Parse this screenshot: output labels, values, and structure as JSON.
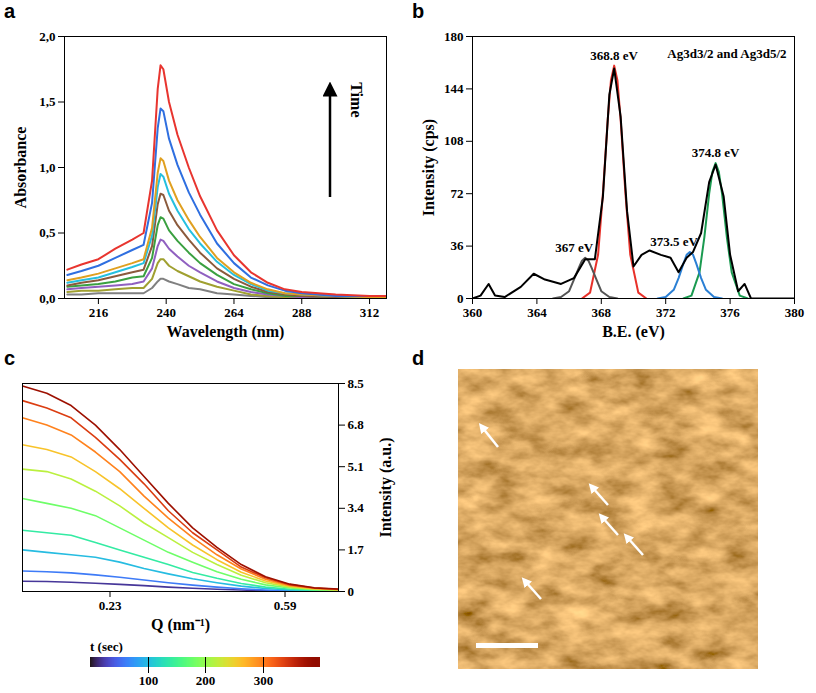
{
  "chart_data": [
    {
      "panel": "a",
      "type": "line",
      "xlabel": "Wavelength (nm)",
      "ylabel": "Absorbance",
      "annotation": "Time",
      "xlim": [
        204,
        318
      ],
      "xticks": [
        216,
        240,
        264,
        288,
        312
      ],
      "ylim": [
        0,
        2
      ],
      "yticks": [
        {
          "value": 0,
          "label": "0,0"
        },
        {
          "value": 0.5,
          "label": "0,5"
        },
        {
          "value": 1,
          "label": "1,0"
        },
        {
          "value": 1.5,
          "label": "1,5"
        },
        {
          "value": 2,
          "label": "2,0"
        }
      ],
      "x": [
        205,
        210,
        216,
        222,
        228,
        232,
        235,
        237,
        238,
        239,
        241,
        244,
        248,
        252,
        258,
        264,
        270,
        276,
        282,
        288,
        300,
        312,
        318
      ],
      "series": [
        {
          "color": "#e8352f",
          "values": [
            0.22,
            0.26,
            0.3,
            0.38,
            0.45,
            0.5,
            0.9,
            1.6,
            1.78,
            1.75,
            1.5,
            1.25,
            1.0,
            0.78,
            0.52,
            0.33,
            0.2,
            0.12,
            0.07,
            0.05,
            0.03,
            0.02,
            0.02
          ]
        },
        {
          "color": "#2f6fe0",
          "values": [
            0.18,
            0.21,
            0.25,
            0.31,
            0.37,
            0.41,
            0.73,
            1.3,
            1.45,
            1.43,
            1.22,
            1.02,
            0.81,
            0.64,
            0.42,
            0.27,
            0.16,
            0.1,
            0.06,
            0.04,
            0.02,
            0.02,
            0.02
          ]
        },
        {
          "color": "#e0a020",
          "values": [
            0.14,
            0.16,
            0.19,
            0.23,
            0.27,
            0.3,
            0.54,
            0.96,
            1.07,
            1.05,
            0.9,
            0.75,
            0.6,
            0.47,
            0.31,
            0.2,
            0.12,
            0.07,
            0.04,
            0.03,
            0.02,
            0.01,
            0.01
          ]
        },
        {
          "color": "#25c0e0",
          "values": [
            0.12,
            0.14,
            0.16,
            0.2,
            0.24,
            0.27,
            0.48,
            0.85,
            0.95,
            0.93,
            0.8,
            0.67,
            0.53,
            0.42,
            0.28,
            0.18,
            0.11,
            0.06,
            0.04,
            0.03,
            0.02,
            0.01,
            0.01
          ]
        },
        {
          "color": "#8b5a3c",
          "values": [
            0.1,
            0.12,
            0.14,
            0.17,
            0.2,
            0.22,
            0.4,
            0.72,
            0.8,
            0.79,
            0.67,
            0.56,
            0.45,
            0.35,
            0.23,
            0.15,
            0.09,
            0.05,
            0.03,
            0.02,
            0.01,
            0.01,
            0.01
          ]
        },
        {
          "color": "#3aa040",
          "values": [
            0.09,
            0.1,
            0.11,
            0.13,
            0.16,
            0.17,
            0.31,
            0.56,
            0.62,
            0.61,
            0.52,
            0.44,
            0.35,
            0.27,
            0.18,
            0.11,
            0.07,
            0.04,
            0.02,
            0.02,
            0.01,
            0.01,
            0.01
          ]
        },
        {
          "color": "#9060c0",
          "values": [
            0.07,
            0.08,
            0.09,
            0.1,
            0.11,
            0.13,
            0.23,
            0.4,
            0.45,
            0.44,
            0.38,
            0.32,
            0.25,
            0.2,
            0.13,
            0.08,
            0.05,
            0.03,
            0.02,
            0.01,
            0.01,
            0.0,
            0.0
          ]
        },
        {
          "color": "#a0a030",
          "values": [
            0.05,
            0.06,
            0.06,
            0.07,
            0.08,
            0.08,
            0.15,
            0.27,
            0.3,
            0.3,
            0.25,
            0.21,
            0.17,
            0.13,
            0.09,
            0.06,
            0.03,
            0.02,
            0.01,
            0.01,
            0.0,
            0.0,
            0.0
          ]
        },
        {
          "color": "#808080",
          "values": [
            0.03,
            0.03,
            0.04,
            0.04,
            0.04,
            0.04,
            0.08,
            0.13,
            0.15,
            0.15,
            0.13,
            0.11,
            0.08,
            0.07,
            0.04,
            0.03,
            0.02,
            0.01,
            0.01,
            0.0,
            0.0,
            0.0,
            0.0
          ]
        }
      ]
    },
    {
      "panel": "b",
      "type": "line",
      "title": "Ag3d3/2 and Ag3d5/2",
      "xlabel": "B.E. (eV)",
      "ylabel": "Intensity (cps)",
      "xlim": [
        360,
        380
      ],
      "xticks": [
        360,
        364,
        368,
        372,
        376,
        380
      ],
      "ylim": [
        0,
        180
      ],
      "yticks": [
        0,
        36,
        72,
        108,
        144,
        180
      ],
      "series": [
        {
          "color": "#000000",
          "x": [
            360,
            360.5,
            361,
            361.4,
            362,
            363,
            363.8,
            364.5,
            365.5,
            366.3,
            367,
            367.6,
            368.1,
            368.5,
            368.8,
            369.2,
            369.6,
            370,
            370.5,
            371,
            371.7,
            372.3,
            372.8,
            373.3,
            373.7,
            374.2,
            374.7,
            375.1,
            375.6,
            376,
            376.5,
            376.9,
            377.3,
            378,
            380
          ],
          "values": [
            0,
            2,
            10,
            2,
            1,
            8,
            17,
            13,
            10,
            14,
            27,
            27,
            70,
            140,
            158,
            125,
            60,
            22,
            30,
            33,
            30,
            28,
            18,
            28,
            32,
            45,
            80,
            92,
            70,
            30,
            5,
            10,
            0,
            0,
            0
          ]
        },
        {
          "color": "#555555",
          "label": "367 eV",
          "x": [
            365.0,
            365.5,
            366.0,
            366.3,
            366.6,
            366.8,
            367.0,
            367.2,
            367.4,
            367.7,
            368.0,
            368.5,
            369.0
          ],
          "values": [
            0,
            1,
            5,
            13,
            21,
            26,
            28,
            26,
            21,
            13,
            5,
            1,
            0
          ]
        },
        {
          "color": "#e8312a",
          "label": "368.8 eV",
          "x": [
            366.8,
            367.3,
            367.8,
            368.1,
            368.4,
            368.6,
            368.8,
            369.0,
            369.2,
            369.5,
            369.8,
            370.3,
            370.8
          ],
          "values": [
            0,
            4,
            30,
            72,
            123,
            150,
            160,
            150,
            123,
            72,
            30,
            4,
            0
          ]
        },
        {
          "color": "#2a7fd4",
          "label": "373.5 eV",
          "x": [
            371.5,
            372.0,
            372.5,
            372.8,
            373.1,
            373.3,
            373.5,
            373.7,
            373.9,
            374.2,
            374.5,
            375.0,
            375.5
          ],
          "values": [
            0,
            1,
            6,
            14,
            24,
            30,
            32,
            30,
            24,
            14,
            6,
            1,
            0
          ]
        },
        {
          "color": "#1a9a50",
          "label": "374.8 eV",
          "x": [
            373.1,
            373.6,
            374.1,
            374.4,
            374.7,
            374.9,
            375.1,
            375.3,
            375.5,
            375.8,
            376.1,
            376.6,
            377.1
          ],
          "values": [
            0,
            2,
            18,
            42,
            72,
            87,
            93,
            87,
            72,
            42,
            18,
            2,
            0
          ]
        }
      ]
    },
    {
      "panel": "c",
      "type": "line",
      "xlabel": "Q (nm⁻¹)",
      "ylabel": "Intensity (a.u.)",
      "legend": "bottom",
      "xlim": [
        0.05,
        0.7
      ],
      "xticks": [
        0.23,
        0.59
      ],
      "ylim": [
        0,
        8.5
      ],
      "yticks": [
        0,
        1.7,
        3.4,
        5.1,
        6.8,
        8.5
      ],
      "colorbar": {
        "lim": [
          0,
          400
        ],
        "ticks": [
          100,
          200,
          300
        ],
        "label": "t (sec)"
      },
      "x": [
        0.05,
        0.1,
        0.15,
        0.2,
        0.25,
        0.3,
        0.35,
        0.4,
        0.45,
        0.5,
        0.55,
        0.6,
        0.65,
        0.7
      ],
      "series": [
        {
          "t": 380,
          "values": [
            8.4,
            8.1,
            7.6,
            6.8,
            5.8,
            4.7,
            3.6,
            2.6,
            1.8,
            1.1,
            0.6,
            0.3,
            0.15,
            0.1
          ]
        },
        {
          "t": 340,
          "values": [
            7.8,
            7.5,
            7.1,
            6.3,
            5.4,
            4.4,
            3.3,
            2.4,
            1.7,
            1.0,
            0.56,
            0.28,
            0.14,
            0.09
          ]
        },
        {
          "t": 300,
          "values": [
            7.1,
            6.8,
            6.4,
            5.7,
            4.9,
            3.9,
            3.0,
            2.2,
            1.5,
            0.92,
            0.5,
            0.25,
            0.13,
            0.08
          ]
        },
        {
          "t": 260,
          "values": [
            6.0,
            5.8,
            5.5,
            4.9,
            4.2,
            3.4,
            2.6,
            1.9,
            1.3,
            0.79,
            0.43,
            0.22,
            0.11,
            0.07
          ]
        },
        {
          "t": 220,
          "values": [
            5.0,
            4.9,
            4.6,
            4.1,
            3.5,
            2.8,
            2.2,
            1.6,
            1.1,
            0.66,
            0.36,
            0.18,
            0.09,
            0.06
          ]
        },
        {
          "t": 180,
          "values": [
            3.8,
            3.6,
            3.4,
            3.1,
            2.6,
            2.1,
            1.6,
            1.2,
            0.81,
            0.5,
            0.27,
            0.14,
            0.07,
            0.05
          ]
        },
        {
          "t": 140,
          "values": [
            2.5,
            2.4,
            2.3,
            2.0,
            1.7,
            1.4,
            1.1,
            0.78,
            0.54,
            0.33,
            0.18,
            0.09,
            0.05,
            0.03
          ]
        },
        {
          "t": 100,
          "values": [
            1.7,
            1.6,
            1.5,
            1.4,
            1.2,
            0.94,
            0.72,
            0.52,
            0.36,
            0.22,
            0.12,
            0.06,
            0.03,
            0.02
          ]
        },
        {
          "t": 60,
          "values": [
            0.84,
            0.81,
            0.76,
            0.68,
            0.58,
            0.47,
            0.36,
            0.26,
            0.18,
            0.11,
            0.06,
            0.03,
            0.02,
            0.01
          ]
        },
        {
          "t": 20,
          "values": [
            0.42,
            0.41,
            0.38,
            0.34,
            0.29,
            0.24,
            0.18,
            0.13,
            0.09,
            0.06,
            0.03,
            0.02,
            0.01,
            0.01
          ]
        }
      ]
    },
    {
      "panel": "d",
      "type": "image"
    }
  ]
}
